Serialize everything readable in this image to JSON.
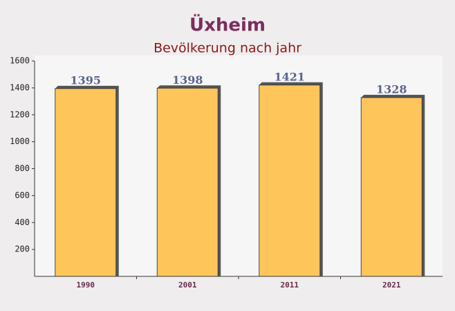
{
  "chart_data": {
    "type": "bar",
    "title": "Üxheim",
    "subtitle": "Bevölkerung nach jahr",
    "categories": [
      "1990",
      "2001",
      "2011",
      "2021"
    ],
    "values": [
      1395,
      1398,
      1421,
      1328
    ],
    "color": "#ffc04a",
    "ylim": [
      0,
      1600
    ],
    "yticks": [
      200,
      400,
      600,
      800,
      1000,
      1200,
      1400,
      1600
    ]
  }
}
